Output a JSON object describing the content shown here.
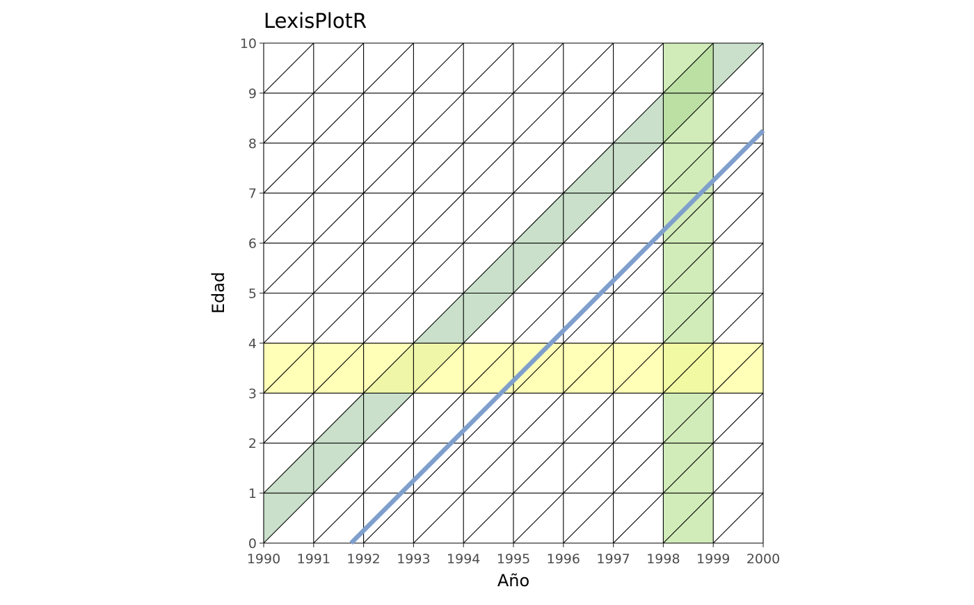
{
  "chart_data": {
    "type": "lexis",
    "title": "LexisPlotR",
    "xlabel": "Año",
    "ylabel": "Edad",
    "xlim": [
      1990,
      2000
    ],
    "ylim": [
      0,
      10
    ],
    "x_ticks": [
      "1990",
      "1991",
      "1992",
      "1993",
      "1994",
      "1995",
      "1996",
      "1997",
      "1998",
      "1999",
      "2000"
    ],
    "y_ticks": [
      "0",
      "1",
      "2",
      "3",
      "4",
      "5",
      "6",
      "7",
      "8",
      "9",
      "10"
    ],
    "grid": "lexis triangles (one diagonal per year-age square)",
    "highlights": [
      {
        "kind": "cohort",
        "birth_year_start": 1989,
        "birth_year_end": 1990,
        "color": "#a6cba8",
        "opacity": 0.6
      },
      {
        "kind": "year",
        "year_start": 1998,
        "year_end": 1999,
        "color": "#b2df8a",
        "opacity": 0.6
      },
      {
        "kind": "age",
        "age_start": 3,
        "age_end": 4,
        "color": "#ffff99",
        "opacity": 0.7
      }
    ],
    "lifeline": {
      "entry": [
        1991.75,
        0
      ],
      "exit": [
        2000,
        8.25
      ],
      "color": "#7f9fcc"
    }
  }
}
